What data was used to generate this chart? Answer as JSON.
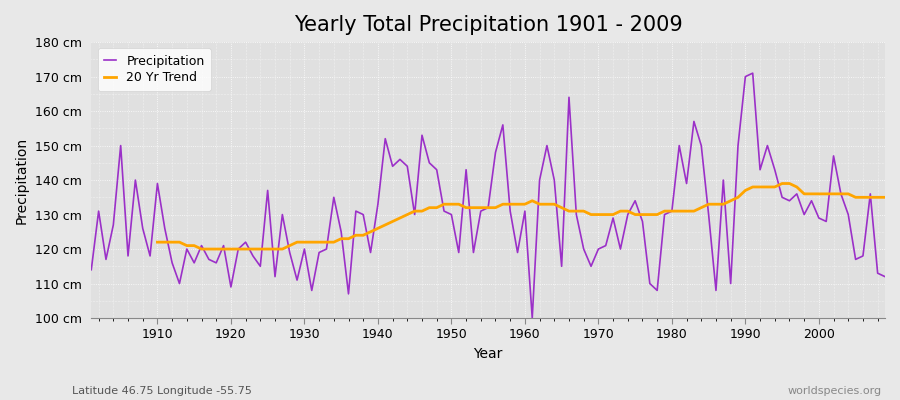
{
  "title": "Yearly Total Precipitation 1901 - 2009",
  "xlabel": "Year",
  "ylabel": "Precipitation",
  "subtitle": "Latitude 46.75 Longitude -55.75",
  "watermark": "worldspecies.org",
  "ylim": [
    100,
    180
  ],
  "ytick_labels": [
    "100 cm",
    "110 cm",
    "120 cm",
    "130 cm",
    "140 cm",
    "150 cm",
    "160 cm",
    "170 cm",
    "180 cm"
  ],
  "ytick_values": [
    100,
    110,
    120,
    130,
    140,
    150,
    160,
    170,
    180
  ],
  "years": [
    1901,
    1902,
    1903,
    1904,
    1905,
    1906,
    1907,
    1908,
    1909,
    1910,
    1911,
    1912,
    1913,
    1914,
    1915,
    1916,
    1917,
    1918,
    1919,
    1920,
    1921,
    1922,
    1923,
    1924,
    1925,
    1926,
    1927,
    1928,
    1929,
    1930,
    1931,
    1932,
    1933,
    1934,
    1935,
    1936,
    1937,
    1938,
    1939,
    1940,
    1941,
    1942,
    1943,
    1944,
    1945,
    1946,
    1947,
    1948,
    1949,
    1950,
    1951,
    1952,
    1953,
    1954,
    1955,
    1956,
    1957,
    1958,
    1959,
    1960,
    1961,
    1962,
    1963,
    1964,
    1965,
    1966,
    1967,
    1968,
    1969,
    1970,
    1971,
    1972,
    1973,
    1974,
    1975,
    1976,
    1977,
    1978,
    1979,
    1980,
    1981,
    1982,
    1983,
    1984,
    1985,
    1986,
    1987,
    1988,
    1989,
    1990,
    1991,
    1992,
    1993,
    1994,
    1995,
    1996,
    1997,
    1998,
    1999,
    2000,
    2001,
    2002,
    2003,
    2004,
    2005,
    2006,
    2007,
    2008,
    2009
  ],
  "precipitation": [
    114,
    131,
    117,
    127,
    150,
    118,
    140,
    126,
    118,
    139,
    126,
    116,
    110,
    120,
    116,
    121,
    117,
    116,
    121,
    109,
    120,
    122,
    118,
    115,
    137,
    112,
    130,
    119,
    111,
    120,
    108,
    119,
    120,
    135,
    125,
    107,
    131,
    130,
    119,
    133,
    152,
    144,
    146,
    144,
    130,
    153,
    145,
    143,
    131,
    130,
    119,
    143,
    119,
    131,
    132,
    148,
    156,
    131,
    119,
    131,
    100,
    140,
    150,
    140,
    115,
    164,
    130,
    120,
    115,
    120,
    121,
    129,
    120,
    130,
    134,
    128,
    110,
    108,
    130,
    131,
    150,
    139,
    157,
    150,
    130,
    108,
    140,
    110,
    150,
    170,
    171,
    143,
    150,
    143,
    135,
    134,
    136,
    130,
    134,
    129,
    128,
    147,
    136,
    130,
    117,
    118,
    136,
    113,
    112
  ],
  "trend": [
    null,
    null,
    null,
    null,
    null,
    null,
    null,
    null,
    null,
    122,
    122,
    122,
    122,
    121,
    121,
    120,
    120,
    120,
    120,
    120,
    120,
    120,
    120,
    120,
    120,
    120,
    120,
    121,
    122,
    122,
    122,
    122,
    122,
    122,
    123,
    123,
    124,
    124,
    125,
    126,
    127,
    128,
    129,
    130,
    131,
    131,
    132,
    132,
    133,
    133,
    133,
    132,
    132,
    132,
    132,
    132,
    133,
    133,
    133,
    133,
    134,
    133,
    133,
    133,
    132,
    131,
    131,
    131,
    130,
    130,
    130,
    130,
    131,
    131,
    130,
    130,
    130,
    130,
    131,
    131,
    131,
    131,
    131,
    132,
    133,
    133,
    133,
    134,
    135,
    137,
    138,
    138,
    138,
    138,
    139,
    139,
    138,
    136,
    136,
    136,
    136,
    136,
    136,
    136,
    135,
    135,
    135,
    135,
    135
  ],
  "precip_color": "#9B30C8",
  "trend_color": "#FFA500",
  "bg_color": "#E8E8E8",
  "plot_bg_color": "#E0E0E0",
  "grid_color": "#FFFFFF",
  "title_fontsize": 15,
  "label_fontsize": 10,
  "tick_fontsize": 9,
  "legend_fontsize": 9,
  "xticks": [
    1910,
    1920,
    1930,
    1940,
    1950,
    1960,
    1970,
    1980,
    1990,
    2000
  ]
}
